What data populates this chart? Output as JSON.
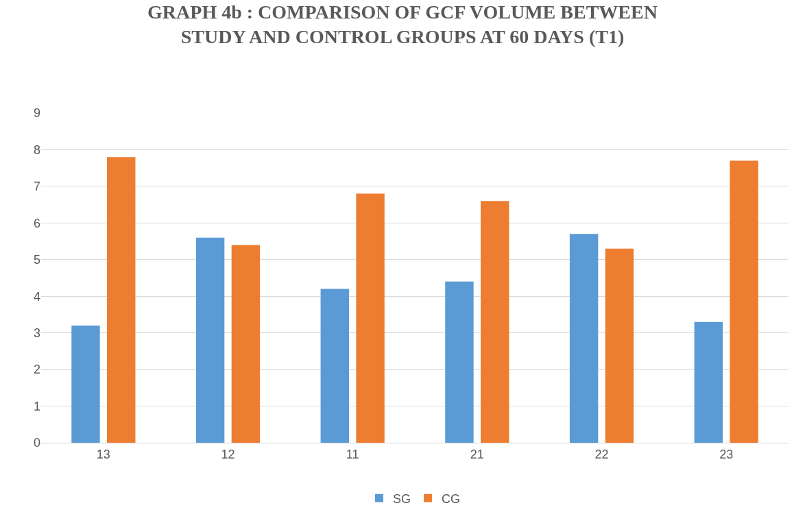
{
  "chart_data": {
    "type": "bar",
    "title": "GRAPH 4b : COMPARISON OF GCF VOLUME BETWEEN\nSTUDY AND CONTROL GROUPS AT 60 DAYS (T1)",
    "categories": [
      "13",
      "12",
      "11",
      "21",
      "22",
      "23"
    ],
    "series": [
      {
        "name": "SG",
        "color": "#5b9bd5",
        "values": [
          3.2,
          5.6,
          4.2,
          4.4,
          5.7,
          3.3
        ]
      },
      {
        "name": "CG",
        "color": "#ed7d31",
        "values": [
          7.8,
          5.4,
          6.8,
          6.6,
          5.3,
          7.7
        ]
      }
    ],
    "ylim": [
      0,
      9
    ],
    "yticks": [
      0,
      1,
      2,
      3,
      4,
      5,
      6,
      7,
      8,
      9
    ],
    "grid": "y",
    "legend": "bottom"
  }
}
